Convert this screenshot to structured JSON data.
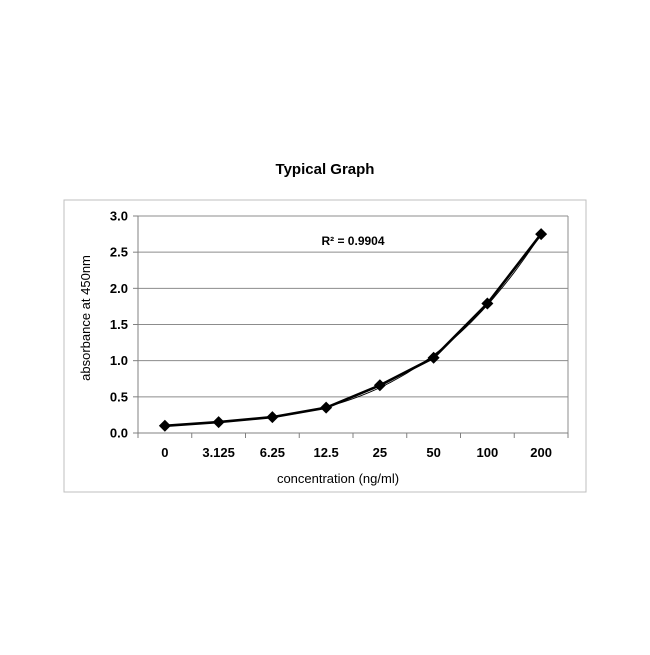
{
  "chart_data": {
    "type": "line",
    "title": "Typical Graph",
    "xlabel": "concentration (ng/ml)",
    "ylabel": "absorbance at 450nm",
    "categories": [
      "0",
      "3.125",
      "6.25",
      "12.5",
      "25",
      "50",
      "100",
      "200"
    ],
    "series": [
      {
        "values": [
          0.1,
          0.15,
          0.22,
          0.35,
          0.66,
          1.04,
          1.79,
          2.75
        ]
      }
    ],
    "trendline": {
      "type": "polynomial",
      "label": "R² = 0.9904"
    },
    "ylim": [
      0,
      3.0
    ],
    "yticks": [
      "0.0",
      "0.5",
      "1.0",
      "1.5",
      "2.0",
      "2.5",
      "3.0"
    ],
    "ytick_values": [
      0,
      0.5,
      1.0,
      1.5,
      2.0,
      2.5,
      3.0
    ],
    "grid": "horizontal",
    "marker": "diamond",
    "legend": "none"
  }
}
